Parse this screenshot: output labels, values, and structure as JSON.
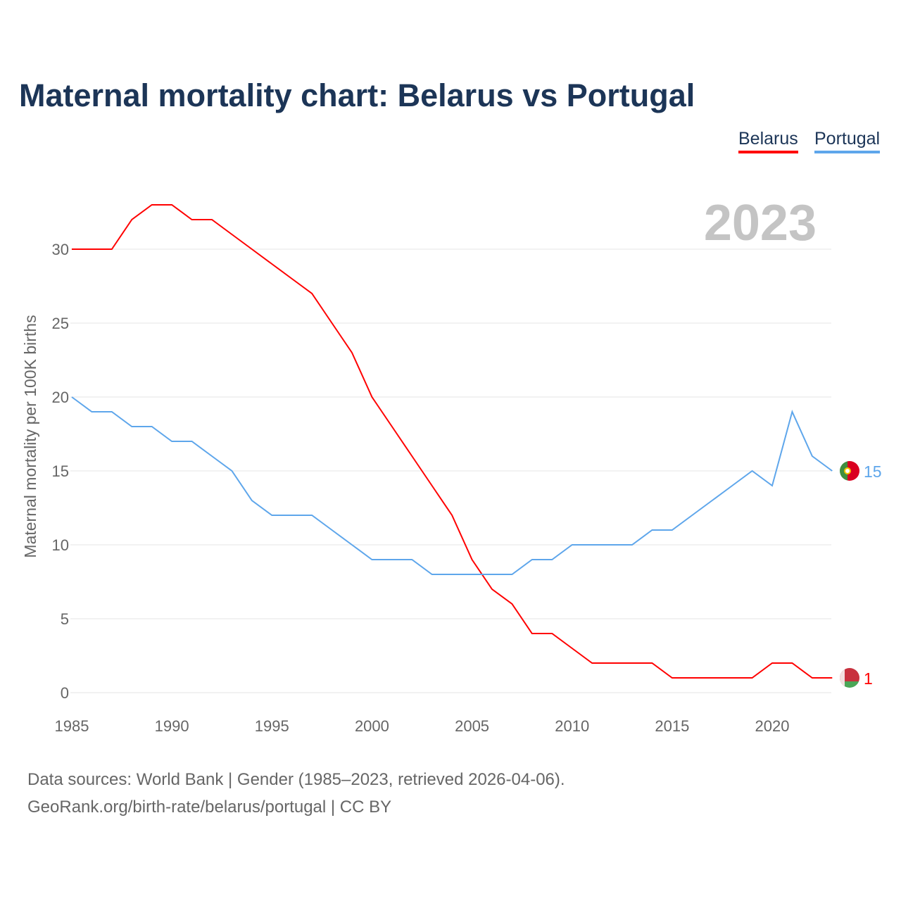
{
  "title": "Maternal mortality chart: Belarus vs Portugal",
  "footer": {
    "line1": "Data sources: World Bank | Gender (1985–2023, retrieved 2026-04-06).",
    "line2": "GeoRank.org/birth-rate/belarus/portugal | CC BY"
  },
  "chart_data": {
    "type": "line",
    "title": "Maternal mortality chart: Belarus vs Portugal",
    "ylabel": "Maternal mortality per 100K births",
    "xlabel": "",
    "year_label": "2023",
    "xlim": [
      1985,
      2023
    ],
    "ylim": [
      0,
      33
    ],
    "x_ticks": [
      "1985",
      "1990",
      "1995",
      "2000",
      "2005",
      "2010",
      "2015",
      "2020"
    ],
    "y_ticks": [
      "0",
      "5",
      "10",
      "15",
      "20",
      "25",
      "30"
    ],
    "grid": true,
    "legend_position": "top-right",
    "x": [
      1985,
      1986,
      1987,
      1988,
      1989,
      1990,
      1991,
      1992,
      1993,
      1994,
      1995,
      1996,
      1997,
      1998,
      1999,
      2000,
      2001,
      2002,
      2003,
      2004,
      2005,
      2006,
      2007,
      2008,
      2009,
      2010,
      2011,
      2012,
      2013,
      2014,
      2015,
      2016,
      2017,
      2018,
      2019,
      2020,
      2021,
      2022,
      2023
    ],
    "series": [
      {
        "name": "Belarus",
        "color": "#ff0000",
        "end_label": "1",
        "values": [
          30,
          30,
          30,
          32,
          33,
          33,
          32,
          32,
          31,
          30,
          29,
          28,
          27,
          25,
          23,
          20,
          18,
          16,
          14,
          12,
          9,
          7,
          6,
          4,
          4,
          3,
          2,
          2,
          2,
          2,
          1,
          1,
          1,
          1,
          1,
          2,
          2,
          1,
          1
        ]
      },
      {
        "name": "Portugal",
        "color": "#5ea6eb",
        "end_label": "15",
        "values": [
          20,
          19,
          19,
          18,
          18,
          17,
          17,
          16,
          15,
          13,
          12,
          12,
          12,
          11,
          10,
          9,
          9,
          9,
          8,
          8,
          8,
          8,
          8,
          9,
          9,
          10,
          10,
          10,
          10,
          11,
          11,
          12,
          13,
          14,
          15,
          14,
          19,
          16,
          15
        ]
      }
    ]
  }
}
